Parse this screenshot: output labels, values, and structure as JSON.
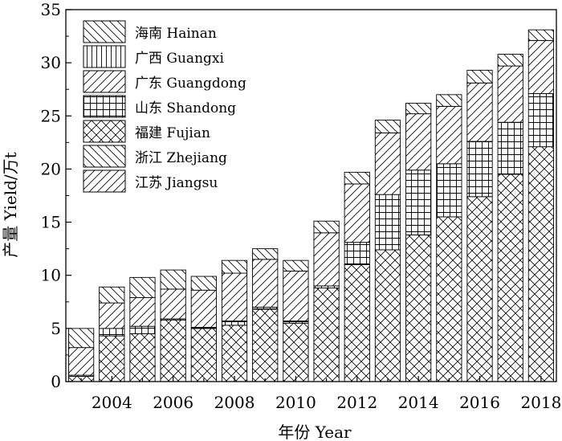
{
  "chart_data": {
    "type": "bar",
    "stacked": true,
    "categories": [
      "2003",
      "2004",
      "2005",
      "2006",
      "2007",
      "2008",
      "2009",
      "2010",
      "2011",
      "2012",
      "2013",
      "2014",
      "2015",
      "2016",
      "2017",
      "2018"
    ],
    "x_tick_labels": [
      "2004",
      "2006",
      "2008",
      "2010",
      "2012",
      "2014",
      "2016",
      "2018"
    ],
    "y_ticks": [
      0,
      5,
      10,
      15,
      20,
      25,
      30,
      35
    ],
    "ylim": [
      0,
      35
    ],
    "xlabel": "年份 Year",
    "ylabel": "产量 Yield/万t",
    "grid": false,
    "legend_position": "top-left",
    "series": [
      {
        "name": "江苏 Jiangsu",
        "pattern": "diag-up",
        "values": [
          0,
          0,
          0,
          0,
          0,
          0,
          0,
          0,
          0,
          0,
          0,
          0,
          0,
          0,
          0,
          0
        ]
      },
      {
        "name": "浙江 Zhejiang",
        "pattern": "diag-down",
        "values": [
          0,
          0,
          0,
          0,
          0,
          0,
          0,
          0,
          0,
          0,
          0,
          0,
          0,
          0,
          0,
          0
        ]
      },
      {
        "name": "福建 Fujian",
        "pattern": "cross",
        "values": [
          0.5,
          4.3,
          4.5,
          5.8,
          5.0,
          5.3,
          6.8,
          5.5,
          8.8,
          11.0,
          12.4,
          13.8,
          15.5,
          17.4,
          19.5,
          22.1
        ]
      },
      {
        "name": "山东 Shandong",
        "pattern": "grid",
        "values": [
          0.1,
          0.7,
          0.7,
          0.1,
          0.1,
          0.4,
          0.2,
          0.2,
          0.2,
          2.1,
          5.2,
          6.1,
          5.0,
          5.2,
          4.9,
          5.0
        ]
      },
      {
        "name": "广东 Guangdong",
        "pattern": "diag-up",
        "values": [
          2.6,
          2.4,
          2.7,
          2.8,
          3.5,
          4.5,
          4.5,
          4.7,
          5.0,
          5.5,
          5.8,
          5.3,
          5.4,
          5.5,
          5.3,
          5.0
        ]
      },
      {
        "name": "广西 Guangxi",
        "pattern": "vlines",
        "values": [
          0,
          0,
          0,
          0,
          0,
          0,
          0,
          0,
          0,
          0,
          0,
          0,
          0,
          0,
          0,
          0
        ]
      },
      {
        "name": "海南 Hainan",
        "pattern": "diag-down",
        "values": [
          1.8,
          1.5,
          1.9,
          1.8,
          1.3,
          1.2,
          1.0,
          1.0,
          1.1,
          1.1,
          1.2,
          1.0,
          1.1,
          1.2,
          1.1,
          1.0
        ]
      }
    ]
  }
}
